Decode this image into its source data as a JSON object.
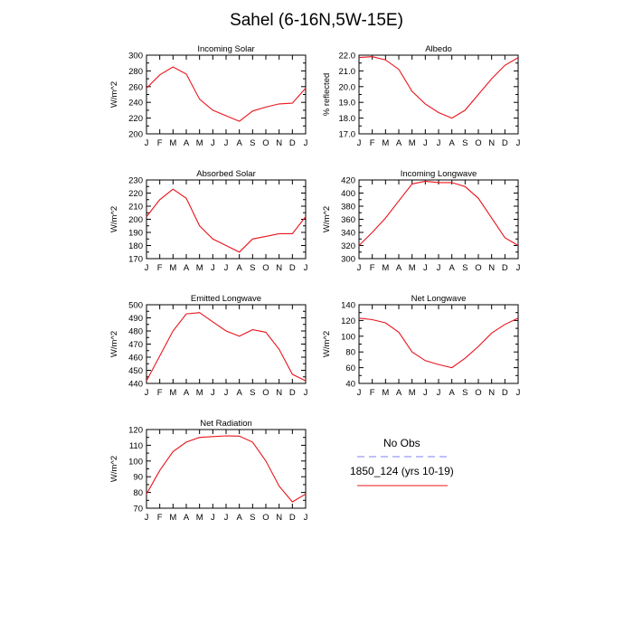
{
  "title": "Sahel (6-16N,5W-15E)",
  "legend": {
    "entries": [
      {
        "label": "No Obs",
        "color": "#7f7ff2",
        "dash": "dashed"
      },
      {
        "label": "1850_124 (yrs 10-19)",
        "color": "#e8141c",
        "dash": "solid"
      }
    ]
  },
  "colors": {
    "model_line": "#e8141c"
  },
  "chart_data": [
    {
      "type": "line",
      "title": "Incoming Solar",
      "ylabel": "W/m^2",
      "ylim": [
        200,
        300
      ],
      "yticks": [
        200,
        220,
        240,
        260,
        280,
        300
      ],
      "ytick_labels": [
        "200",
        "220",
        "240",
        "260",
        "280",
        "300"
      ],
      "categories": [
        "J",
        "F",
        "M",
        "A",
        "M",
        "J",
        "J",
        "A",
        "S",
        "O",
        "N",
        "D",
        "J"
      ],
      "series": [
        {
          "values": [
            258,
            275,
            285,
            276,
            244,
            230,
            223,
            216,
            229,
            234,
            238,
            239,
            258
          ]
        }
      ]
    },
    {
      "type": "line",
      "title": "Albedo",
      "ylabel": "% reflected",
      "ylim": [
        17,
        22
      ],
      "yticks": [
        17,
        18,
        19,
        20,
        21,
        22
      ],
      "ytick_labels": [
        "17.0",
        "18.0",
        "19.0",
        "20.0",
        "21.0",
        "22.0"
      ],
      "categories": [
        "J",
        "F",
        "M",
        "A",
        "M",
        "J",
        "J",
        "A",
        "S",
        "O",
        "N",
        "D",
        "J"
      ],
      "series": [
        {
          "values": [
            21.85,
            21.9,
            21.7,
            21.1,
            19.7,
            18.9,
            18.35,
            18.0,
            18.5,
            19.5,
            20.5,
            21.35,
            21.85
          ]
        }
      ]
    },
    {
      "type": "line",
      "title": "Absorbed Solar",
      "ylabel": "W/m^2",
      "ylim": [
        170,
        230
      ],
      "yticks": [
        170,
        180,
        190,
        200,
        210,
        220,
        230
      ],
      "ytick_labels": [
        "170",
        "180",
        "190",
        "200",
        "210",
        "220",
        "230"
      ],
      "categories": [
        "J",
        "F",
        "M",
        "A",
        "M",
        "J",
        "J",
        "A",
        "S",
        "O",
        "N",
        "D",
        "J"
      ],
      "series": [
        {
          "values": [
            202,
            215,
            223,
            216,
            195,
            185,
            180,
            175,
            185,
            187,
            189,
            189,
            202
          ]
        }
      ]
    },
    {
      "type": "line",
      "title": "Incoming Longwave",
      "ylabel": "W/m^2",
      "ylim": [
        300,
        420
      ],
      "yticks": [
        300,
        320,
        340,
        360,
        380,
        400,
        420
      ],
      "ytick_labels": [
        "300",
        "320",
        "340",
        "360",
        "380",
        "400",
        "420"
      ],
      "categories": [
        "J",
        "F",
        "M",
        "A",
        "M",
        "J",
        "J",
        "A",
        "S",
        "O",
        "N",
        "D",
        "J"
      ],
      "series": [
        {
          "values": [
            320,
            340,
            362,
            388,
            414,
            418,
            416,
            416,
            410,
            392,
            362,
            332,
            320
          ]
        }
      ]
    },
    {
      "type": "line",
      "title": "Emitted Longwave",
      "ylabel": "W/m^2",
      "ylim": [
        440,
        500
      ],
      "yticks": [
        440,
        450,
        460,
        470,
        480,
        490,
        500
      ],
      "ytick_labels": [
        "440",
        "450",
        "460",
        "470",
        "480",
        "490",
        "500"
      ],
      "categories": [
        "J",
        "F",
        "M",
        "A",
        "M",
        "J",
        "J",
        "A",
        "S",
        "O",
        "N",
        "D",
        "J"
      ],
      "series": [
        {
          "values": [
            442,
            461,
            480,
            493,
            494,
            487,
            480,
            476,
            481,
            479,
            466,
            447,
            442
          ]
        }
      ]
    },
    {
      "type": "line",
      "title": "Net Longwave",
      "ylabel": "W/m^2",
      "ylim": [
        40,
        140
      ],
      "yticks": [
        40,
        60,
        80,
        100,
        120,
        140
      ],
      "ytick_labels": [
        "40",
        "60",
        "80",
        "100",
        "120",
        "140"
      ],
      "categories": [
        "J",
        "F",
        "M",
        "A",
        "M",
        "J",
        "J",
        "A",
        "S",
        "O",
        "N",
        "D",
        "J"
      ],
      "series": [
        {
          "values": [
            123,
            121,
            117,
            105,
            80,
            69,
            64,
            60,
            72,
            87,
            104,
            115,
            123
          ]
        }
      ]
    },
    {
      "type": "line",
      "title": "Net Radiation",
      "ylabel": "W/m^2",
      "ylim": [
        70,
        120
      ],
      "yticks": [
        70,
        80,
        90,
        100,
        110,
        120
      ],
      "ytick_labels": [
        "70",
        "80",
        "90",
        "100",
        "110",
        "120"
      ],
      "categories": [
        "J",
        "F",
        "M",
        "A",
        "M",
        "J",
        "J",
        "A",
        "S",
        "O",
        "N",
        "D",
        "J"
      ],
      "series": [
        {
          "values": [
            79,
            94,
            106,
            112,
            115,
            115.5,
            116,
            115.8,
            112,
            100,
            84,
            74,
            79
          ]
        }
      ]
    }
  ]
}
